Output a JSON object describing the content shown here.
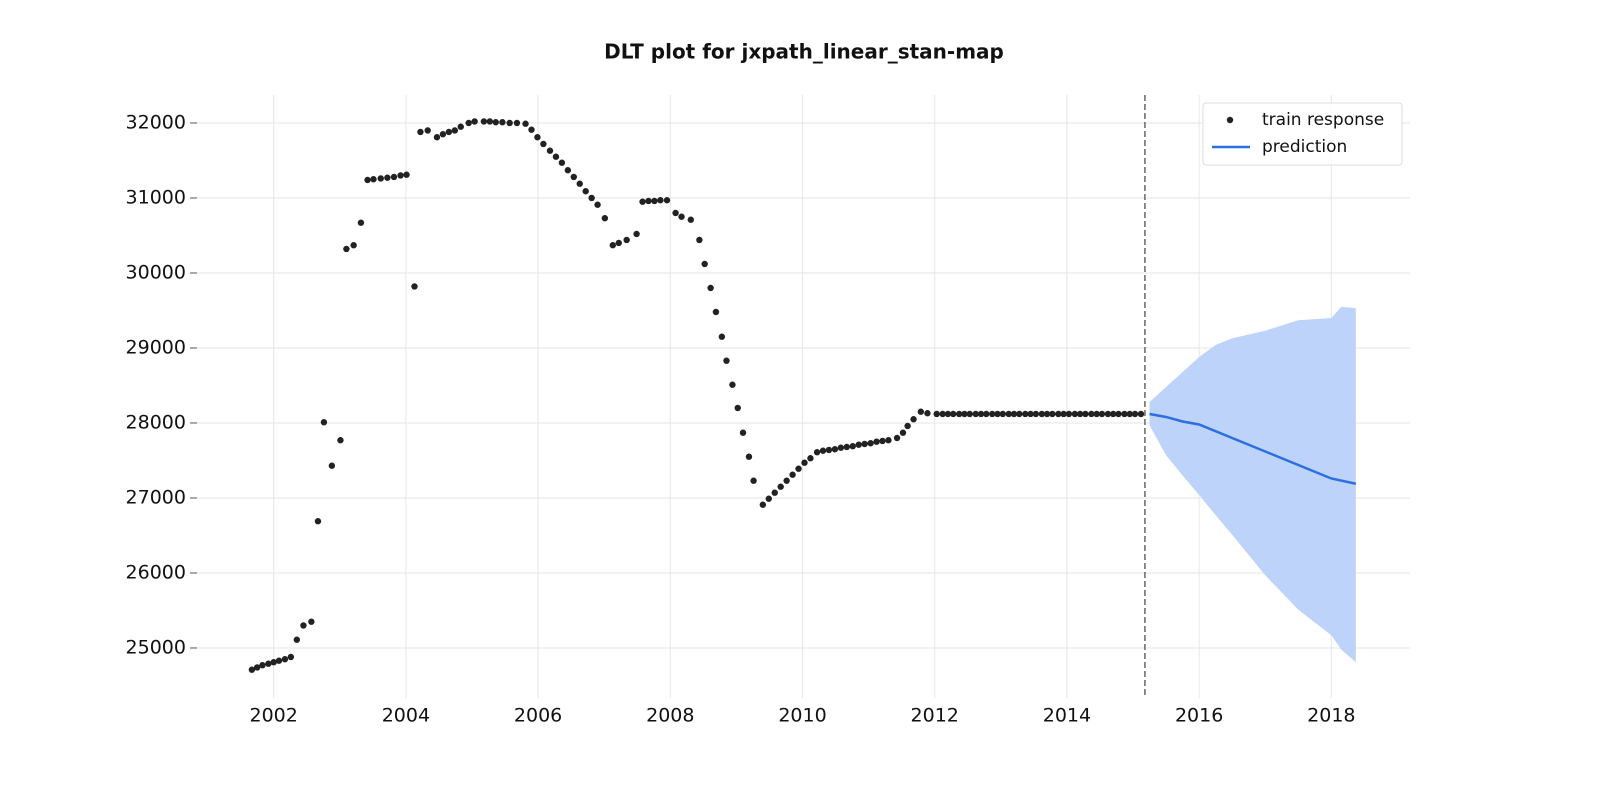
{
  "chart_data": {
    "type": "line",
    "title": "DLT plot for jxpath_linear_stan-map",
    "xlim": [
      2000.84,
      2019.19
    ],
    "ylim": [
      24333,
      32373
    ],
    "xticks": [
      2002,
      2004,
      2006,
      2008,
      2010,
      2012,
      2014,
      2016,
      2018
    ],
    "yticks": [
      25000,
      26000,
      27000,
      28000,
      29000,
      30000,
      31000,
      32000
    ],
    "grid": true,
    "legend": "upper right",
    "vline": {
      "x": 2015.18,
      "color": "#666666"
    },
    "band": {
      "color": "#bdd3f9",
      "x": [
        2015.25,
        2015.5,
        2015.75,
        2016,
        2016.25,
        2016.5,
        2017,
        2017.5,
        2018,
        2018.15,
        2018.37
      ],
      "upper": [
        28280,
        28480,
        28680,
        28880,
        29040,
        29130,
        29230,
        29370,
        29400,
        29550,
        29530
      ],
      "lower": [
        27970,
        27570,
        27300,
        27040,
        26770,
        26510,
        25970,
        25510,
        25170,
        24980,
        24810
      ]
    },
    "series": [
      {
        "name": "train response",
        "color": "#222222",
        "kind": "scatter",
        "x": [
          2001.67,
          2001.75,
          2001.83,
          2001.92,
          2002.0,
          2002.08,
          2002.17,
          2002.26,
          2002.35,
          2002.45,
          2002.57,
          2002.67,
          2002.76,
          2002.88,
          2003.01,
          2003.1,
          2003.21,
          2003.32,
          2003.42,
          2003.51,
          2003.62,
          2003.72,
          2003.82,
          2003.92,
          2004.01,
          2004.13,
          2004.22,
          2004.33,
          2004.47,
          2004.56,
          2004.65,
          2004.74,
          2004.83,
          2004.95,
          2005.04,
          2005.18,
          2005.27,
          2005.36,
          2005.46,
          2005.57,
          2005.68,
          2005.81,
          2005.9,
          2005.99,
          2006.08,
          2006.18,
          2006.27,
          2006.36,
          2006.45,
          2006.54,
          2006.63,
          2006.72,
          2006.81,
          2006.9,
          2007.01,
          2007.13,
          2007.22,
          2007.34,
          2007.49,
          2007.58,
          2007.67,
          2007.76,
          2007.85,
          2007.95,
          2008.08,
          2008.17,
          2008.31,
          2008.44,
          2008.52,
          2008.61,
          2008.69,
          2008.78,
          2008.85,
          2008.94,
          2009.02,
          2009.1,
          2009.19,
          2009.26,
          2009.4,
          2009.49,
          2009.58,
          2009.67,
          2009.76,
          2009.85,
          2009.94,
          2010.03,
          2010.12,
          2010.22,
          2010.31,
          2010.4,
          2010.49,
          2010.58,
          2010.67,
          2010.76,
          2010.85,
          2010.94,
          2011.03,
          2011.12,
          2011.21,
          2011.3,
          2011.43,
          2011.52,
          2011.59,
          2011.68,
          2011.79,
          2011.89,
          2012.03,
          2012.12,
          2012.2,
          2012.28,
          2012.37,
          2012.45,
          2012.53,
          2012.62,
          2012.7,
          2012.78,
          2012.87,
          2012.95,
          2013.03,
          2013.12,
          2013.2,
          2013.28,
          2013.37,
          2013.45,
          2013.53,
          2013.62,
          2013.7,
          2013.78,
          2013.87,
          2013.95,
          2014.03,
          2014.12,
          2014.2,
          2014.28,
          2014.37,
          2014.45,
          2014.53,
          2014.62,
          2014.7,
          2014.78,
          2014.87,
          2014.95,
          2015.03,
          2015.12
        ],
        "values": [
          24710,
          24740,
          24770,
          24790,
          24810,
          24830,
          24850,
          24880,
          25110,
          25300,
          25350,
          26690,
          28010,
          27430,
          27770,
          30320,
          30370,
          30670,
          31240,
          31250,
          31260,
          31270,
          31280,
          31300,
          31310,
          29820,
          31880,
          31900,
          31810,
          31850,
          31880,
          31900,
          31950,
          32000,
          32020,
          32020,
          32020,
          32010,
          32010,
          32000,
          32000,
          31990,
          31910,
          31810,
          31720,
          31630,
          31550,
          31470,
          31370,
          31280,
          31190,
          31090,
          31000,
          30910,
          30730,
          30370,
          30400,
          30440,
          30520,
          30950,
          30960,
          30960,
          30970,
          30970,
          30800,
          30750,
          30710,
          30440,
          30120,
          29800,
          29480,
          29150,
          28830,
          28510,
          28200,
          27870,
          27550,
          27230,
          26910,
          26990,
          27070,
          27150,
          27230,
          27310,
          27390,
          27470,
          27530,
          27610,
          27630,
          27640,
          27650,
          27670,
          27680,
          27690,
          27710,
          27720,
          27730,
          27750,
          27760,
          27770,
          27800,
          27870,
          27960,
          28050,
          28150,
          28130,
          28120,
          28120,
          28120,
          28120,
          28120,
          28120,
          28120,
          28120,
          28120,
          28120,
          28120,
          28120,
          28120,
          28120,
          28120,
          28120,
          28120,
          28120,
          28120,
          28120,
          28120,
          28120,
          28120,
          28120,
          28120,
          28120,
          28120,
          28120,
          28120,
          28120,
          28120,
          28120,
          28120,
          28120,
          28120,
          28120,
          28120,
          28120
        ]
      },
      {
        "name": "prediction",
        "color": "#2b6fe0",
        "kind": "line",
        "x": [
          2015.25,
          2015.5,
          2015.75,
          2016,
          2016.5,
          2017,
          2017.5,
          2018,
          2018.37
        ],
        "values": [
          28120,
          28080,
          28020,
          27980,
          27800,
          27620,
          27440,
          27260,
          27190
        ]
      }
    ]
  }
}
